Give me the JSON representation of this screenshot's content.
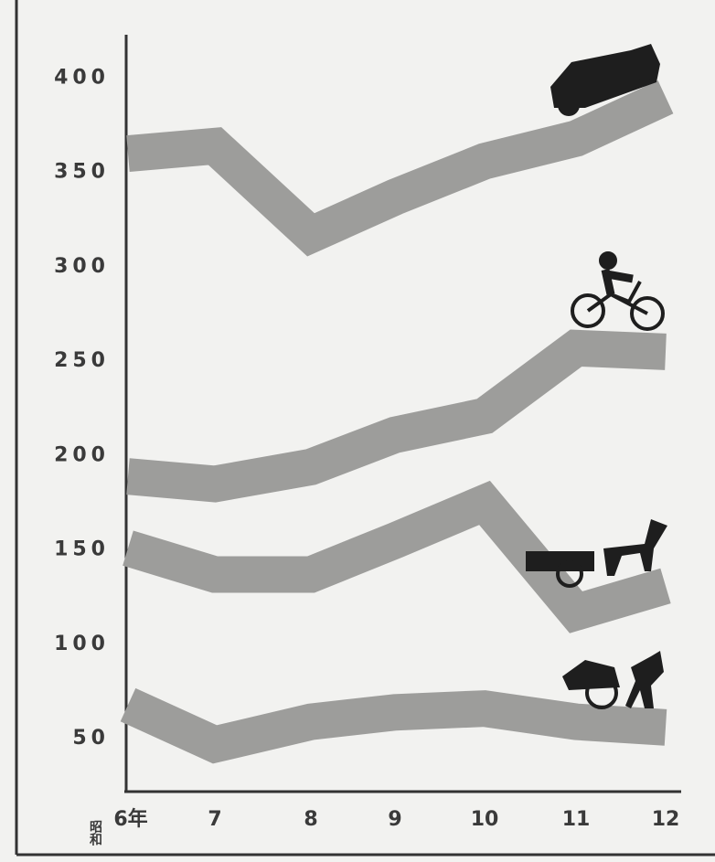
{
  "chart_data": {
    "type": "line",
    "era": "昭和",
    "categories": [
      "6年",
      "7",
      "8",
      "9",
      "10",
      "11",
      "12"
    ],
    "series": [
      {
        "color": "#9d9d9b",
        "values": [
          360,
          364,
          317,
          337,
          356,
          368,
          390
        ]
      },
      {
        "color": "#9d9d9b",
        "values": [
          189,
          185,
          194,
          211,
          221,
          257,
          255
        ]
      },
      {
        "color": "#9d9d9b",
        "values": [
          151,
          137,
          137,
          155,
          175,
          117,
          131
        ]
      },
      {
        "color": "#9d9d9b",
        "values": [
          68,
          47,
          59,
          64,
          66,
          59,
          56
        ]
      }
    ],
    "ylim": [
      22,
      423
    ],
    "yticks": [
      50,
      100,
      150,
      200,
      250,
      300,
      350,
      400
    ]
  }
}
